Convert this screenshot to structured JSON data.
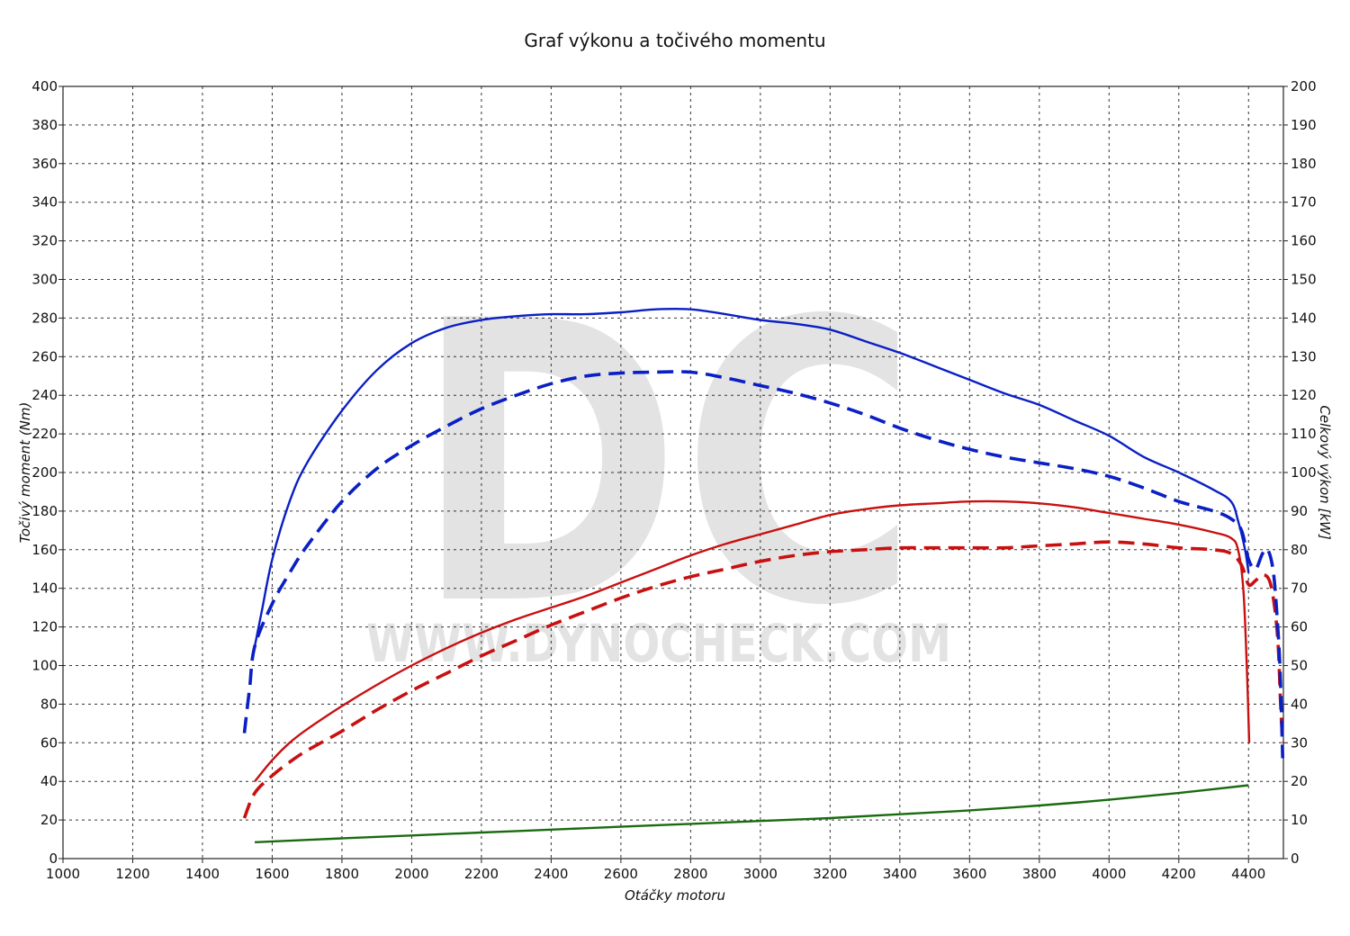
{
  "chart_data": {
    "type": "line",
    "title": "Graf výkonu a točivého momentu",
    "xlabel": "Otáčky motoru",
    "ylabel_left": "Točivý moment (Nm)",
    "ylabel_right": "Celkový výkon [kW]",
    "xlim": [
      1000,
      4500
    ],
    "ylim_left": [
      0,
      400
    ],
    "ylim_right": [
      0,
      200
    ],
    "x_ticks": [
      1000,
      1200,
      1400,
      1600,
      1800,
      2000,
      2200,
      2400,
      2600,
      2800,
      3000,
      3200,
      3400,
      3600,
      3800,
      4000,
      4200,
      4400
    ],
    "y_ticks_left": [
      0,
      20,
      40,
      60,
      80,
      100,
      120,
      140,
      160,
      180,
      200,
      220,
      240,
      260,
      280,
      300,
      320,
      340,
      360,
      380,
      400
    ],
    "y_ticks_right": [
      0,
      10,
      20,
      30,
      40,
      50,
      60,
      70,
      80,
      90,
      100,
      110,
      120,
      130,
      140,
      150,
      160,
      170,
      180,
      190,
      200
    ],
    "grid": true,
    "watermark": "WWW.DYNOCHECK.COM",
    "watermark_logo": "DC",
    "series": [
      {
        "color": "#0a1fc4",
        "style": "solid",
        "axis": "left",
        "points": [
          [
            1550,
            110
          ],
          [
            1570,
            128
          ],
          [
            1600,
            155
          ],
          [
            1650,
            185
          ],
          [
            1700,
            205
          ],
          [
            1800,
            232
          ],
          [
            1900,
            253
          ],
          [
            2000,
            267
          ],
          [
            2100,
            275
          ],
          [
            2200,
            279
          ],
          [
            2300,
            281
          ],
          [
            2400,
            282
          ],
          [
            2500,
            282
          ],
          [
            2600,
            283
          ],
          [
            2700,
            284.5
          ],
          [
            2800,
            284.5
          ],
          [
            2900,
            282
          ],
          [
            3000,
            279
          ],
          [
            3100,
            277
          ],
          [
            3200,
            274
          ],
          [
            3300,
            268
          ],
          [
            3400,
            262
          ],
          [
            3500,
            255
          ],
          [
            3600,
            248
          ],
          [
            3700,
            241
          ],
          [
            3800,
            235
          ],
          [
            3900,
            227
          ],
          [
            4000,
            219
          ],
          [
            4100,
            208
          ],
          [
            4200,
            200
          ],
          [
            4300,
            191
          ],
          [
            4350,
            185
          ],
          [
            4370,
            175
          ],
          [
            4390,
            160
          ],
          [
            4400,
            148
          ]
        ]
      },
      {
        "color": "#0a1fc4",
        "style": "dashed",
        "axis": "left",
        "points": [
          [
            1520,
            65
          ],
          [
            1535,
            88
          ],
          [
            1550,
            110
          ],
          [
            1600,
            132
          ],
          [
            1650,
            148
          ],
          [
            1700,
            162
          ],
          [
            1800,
            185
          ],
          [
            1900,
            202
          ],
          [
            2000,
            214
          ],
          [
            2100,
            224
          ],
          [
            2200,
            233
          ],
          [
            2300,
            240
          ],
          [
            2400,
            246
          ],
          [
            2500,
            250
          ],
          [
            2600,
            251.5
          ],
          [
            2700,
            252
          ],
          [
            2800,
            252
          ],
          [
            2900,
            249
          ],
          [
            3000,
            245
          ],
          [
            3100,
            241
          ],
          [
            3200,
            236
          ],
          [
            3300,
            230
          ],
          [
            3400,
            223
          ],
          [
            3500,
            217
          ],
          [
            3600,
            212
          ],
          [
            3700,
            208
          ],
          [
            3800,
            205
          ],
          [
            3900,
            202
          ],
          [
            4000,
            198
          ],
          [
            4100,
            192
          ],
          [
            4200,
            185
          ],
          [
            4300,
            180
          ],
          [
            4350,
            176
          ],
          [
            4380,
            170
          ],
          [
            4400,
            155
          ],
          [
            4420,
            150
          ],
          [
            4440,
            158
          ],
          [
            4455,
            160
          ],
          [
            4470,
            150
          ],
          [
            4480,
            130
          ],
          [
            4490,
            100
          ],
          [
            4498,
            52
          ]
        ]
      },
      {
        "color": "#c81010",
        "style": "solid",
        "axis": "right",
        "points": [
          [
            1550,
            20
          ],
          [
            1600,
            25.5
          ],
          [
            1650,
            30
          ],
          [
            1700,
            33.5
          ],
          [
            1800,
            39.5
          ],
          [
            1900,
            45
          ],
          [
            2000,
            50
          ],
          [
            2100,
            54.5
          ],
          [
            2200,
            58.5
          ],
          [
            2300,
            62
          ],
          [
            2400,
            65
          ],
          [
            2500,
            68
          ],
          [
            2600,
            71.5
          ],
          [
            2700,
            75
          ],
          [
            2800,
            78.5
          ],
          [
            2900,
            81.5
          ],
          [
            3000,
            84
          ],
          [
            3100,
            86.5
          ],
          [
            3200,
            89
          ],
          [
            3300,
            90.5
          ],
          [
            3400,
            91.5
          ],
          [
            3500,
            92
          ],
          [
            3600,
            92.5
          ],
          [
            3700,
            92.5
          ],
          [
            3800,
            92
          ],
          [
            3900,
            91
          ],
          [
            4000,
            89.5
          ],
          [
            4100,
            88
          ],
          [
            4200,
            86.5
          ],
          [
            4300,
            84.5
          ],
          [
            4350,
            83
          ],
          [
            4370,
            80
          ],
          [
            4385,
            70
          ],
          [
            4395,
            50
          ],
          [
            4402,
            30
          ]
        ]
      },
      {
        "color": "#c81010",
        "style": "dashed",
        "axis": "right",
        "points": [
          [
            1520,
            10.5
          ],
          [
            1550,
            17
          ],
          [
            1600,
            21.5
          ],
          [
            1650,
            25
          ],
          [
            1700,
            28
          ],
          [
            1800,
            33
          ],
          [
            1900,
            38.5
          ],
          [
            2000,
            43.5
          ],
          [
            2100,
            48
          ],
          [
            2200,
            52.5
          ],
          [
            2300,
            56.5
          ],
          [
            2400,
            60.5
          ],
          [
            2500,
            64
          ],
          [
            2600,
            67.5
          ],
          [
            2700,
            70.5
          ],
          [
            2800,
            73
          ],
          [
            2900,
            75
          ],
          [
            3000,
            77
          ],
          [
            3100,
            78.5
          ],
          [
            3200,
            79.5
          ],
          [
            3300,
            80
          ],
          [
            3400,
            80.5
          ],
          [
            3500,
            80.5
          ],
          [
            3600,
            80.5
          ],
          [
            3700,
            80.5
          ],
          [
            3800,
            81
          ],
          [
            3900,
            81.5
          ],
          [
            4000,
            82
          ],
          [
            4100,
            81.5
          ],
          [
            4200,
            80.5
          ],
          [
            4300,
            80
          ],
          [
            4350,
            79
          ],
          [
            4380,
            76
          ],
          [
            4400,
            71
          ],
          [
            4420,
            72
          ],
          [
            4440,
            73.5
          ],
          [
            4460,
            72
          ],
          [
            4475,
            65
          ],
          [
            4485,
            55
          ],
          [
            4492,
            40
          ],
          [
            4498,
            30
          ]
        ]
      },
      {
        "color": "#1a6b10",
        "style": "solid",
        "axis": "left",
        "points": [
          [
            1550,
            8.5
          ],
          [
            1800,
            10.5
          ],
          [
            2000,
            12
          ],
          [
            2200,
            13.5
          ],
          [
            2400,
            15
          ],
          [
            2600,
            16.5
          ],
          [
            2800,
            18
          ],
          [
            3000,
            19.5
          ],
          [
            3200,
            21
          ],
          [
            3400,
            23
          ],
          [
            3600,
            25
          ],
          [
            3800,
            27.5
          ],
          [
            4000,
            30.5
          ],
          [
            4200,
            34
          ],
          [
            4400,
            38
          ]
        ]
      }
    ]
  }
}
